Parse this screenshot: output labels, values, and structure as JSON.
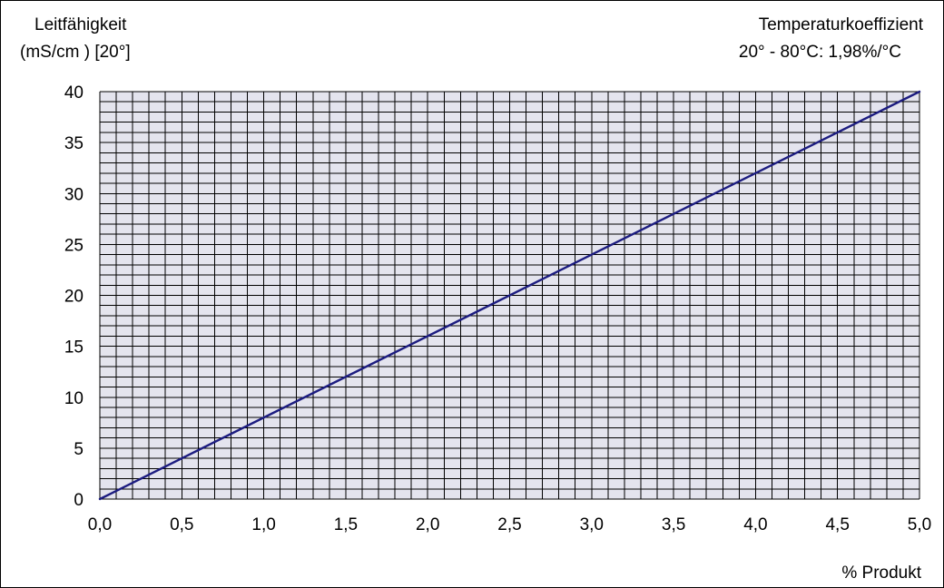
{
  "header": {
    "ylabel_line1": "Leitfähigkeit",
    "ylabel_line2": "(mS/cm ) [20°]",
    "note_line1": "Temperaturkoeffizient",
    "note_line2": "20° - 80°C: 1,98%/°C"
  },
  "footer": {
    "xlabel": "% Produkt"
  },
  "chart_data": {
    "type": "line",
    "title": "",
    "xlabel": "% Produkt",
    "ylabel": "Leitfähigkeit (mS/cm ) [20°]",
    "annotation": "Temperaturkoeffizient 20° - 80°C: 1,98%/°C",
    "xlim": [
      0,
      5
    ],
    "ylim": [
      0,
      40
    ],
    "grid": true,
    "x_ticks": [
      "0,0",
      "0,5",
      "1,0",
      "1,5",
      "2,0",
      "2,5",
      "3,0",
      "3,5",
      "4,0",
      "4,5",
      "5,0"
    ],
    "y_ticks": [
      "0",
      "5",
      "10",
      "15",
      "20",
      "25",
      "30",
      "35",
      "40"
    ],
    "series": [
      {
        "x": [
          0,
          5
        ],
        "y": [
          0,
          40
        ]
      }
    ],
    "colors": {
      "line": "#1c1c80",
      "plot_bg": "#e4e4ee",
      "grid": "#000000"
    }
  }
}
